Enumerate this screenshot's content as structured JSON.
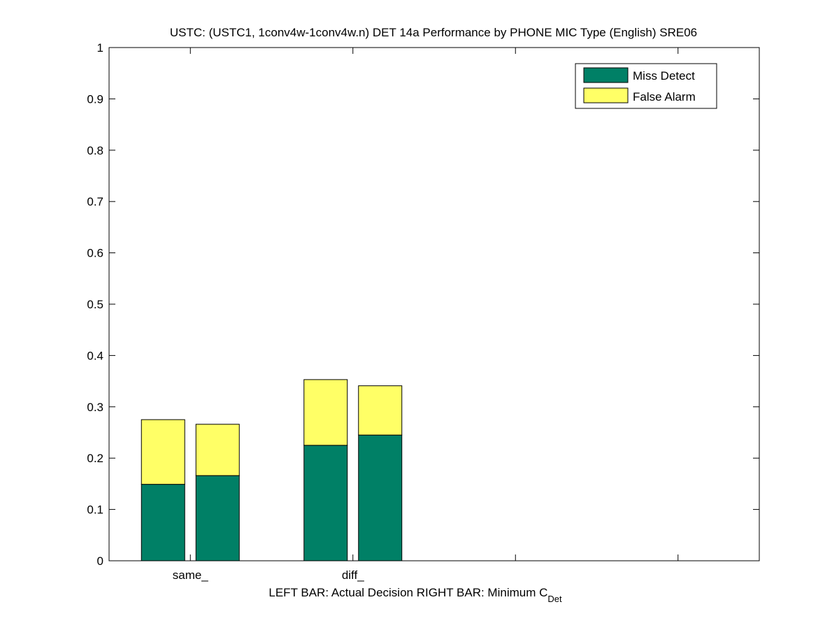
{
  "chart_data": {
    "type": "bar",
    "title": "USTC: (USTC1, 1conv4w-1conv4w.n) DET 14a Performance by PHONE MIC Type (English) SRE06",
    "xlabel_main": "LEFT BAR: Actual Decision     RIGHT BAR: Minimum C",
    "xlabel_sub": "Det",
    "categories": [
      "same_",
      "diff_"
    ],
    "bars": [
      {
        "category": "same_",
        "position": "left",
        "miss_detect": 0.149,
        "false_alarm": 0.126
      },
      {
        "category": "same_",
        "position": "right",
        "miss_detect": 0.166,
        "false_alarm": 0.1
      },
      {
        "category": "diff_",
        "position": "left",
        "miss_detect": 0.225,
        "false_alarm": 0.128
      },
      {
        "category": "diff_",
        "position": "right",
        "miss_detect": 0.245,
        "false_alarm": 0.096
      }
    ],
    "series": [
      {
        "name": "Miss Detect",
        "color": "#008066"
      },
      {
        "name": "False Alarm",
        "color": "#ffff66"
      }
    ],
    "ylim": [
      0,
      1
    ],
    "yticks": [
      "0",
      "0.1",
      "0.2",
      "0.3",
      "0.4",
      "0.5",
      "0.6",
      "0.7",
      "0.8",
      "0.9",
      "1"
    ],
    "legend_placement": "top-right",
    "grid": false
  }
}
